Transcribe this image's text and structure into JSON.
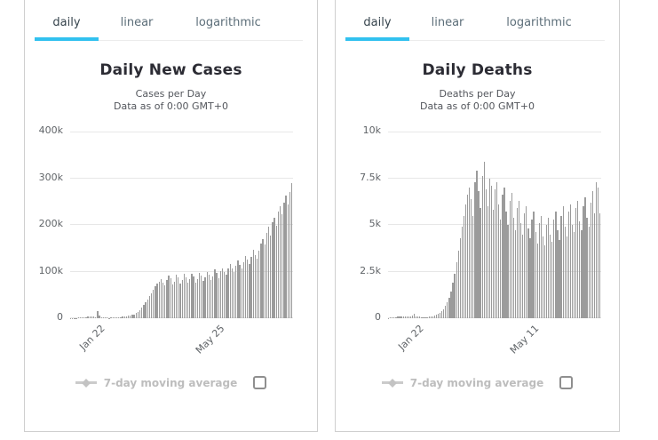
{
  "panels": [
    {
      "tabs": [
        {
          "label": "daily",
          "active": true
        },
        {
          "label": "linear",
          "active": false
        },
        {
          "label": "logarithmic",
          "active": false
        }
      ],
      "title": "Daily New Cases",
      "subtitle_line1": "Cases per Day",
      "subtitle_line2": "Data as of 0:00 GMT+0",
      "legend": {
        "label": "7-day moving average",
        "checkbox_checked": false
      }
    },
    {
      "tabs": [
        {
          "label": "daily",
          "active": true
        },
        {
          "label": "linear",
          "active": false
        },
        {
          "label": "logarithmic",
          "active": false
        }
      ],
      "title": "Daily Deaths",
      "subtitle_line1": "Deaths per Day",
      "subtitle_line2": "Data as of 0:00 GMT+0",
      "legend": {
        "label": "7-day moving average",
        "checkbox_checked": false
      }
    }
  ],
  "colors": {
    "bar": "#9b9b9b",
    "gridline": "#e7e7e7",
    "tab_underline": "#31c1ef",
    "panel_border": "#cfcfcf",
    "axis_text": "#606468",
    "legend_text": "#bdbdbd"
  },
  "chart_data": [
    {
      "type": "bar",
      "title": "Daily New Cases",
      "subtitle": "Cases per Day — Data as of 0:00 GMT+0",
      "unit": "thousands of cases per day",
      "ylim": [
        0,
        400
      ],
      "yticks": [
        "0",
        "100k",
        "200k",
        "300k",
        "400k"
      ],
      "xticks": [
        {
          "label": "Jan 22",
          "pos": 0.12
        },
        {
          "label": "May 25",
          "pos": 0.66
        }
      ],
      "grid": true,
      "legend_position": "bottom",
      "values": [
        0.3,
        0.5,
        0.7,
        0.9,
        1.2,
        1.8,
        2,
        2.3,
        2.7,
        3.1,
        3.5,
        3.8,
        3.2,
        2.8,
        14.6,
        4.9,
        2.3,
        2,
        1.8,
        1.4,
        0.9,
        1.1,
        1.4,
        1.7,
        2,
        2.3,
        2.7,
        3.1,
        3.6,
        4.2,
        4.8,
        5.6,
        6.8,
        8.5,
        11,
        14,
        18,
        23,
        28,
        34,
        40,
        47,
        54,
        61,
        68,
        74,
        79,
        84,
        77,
        71,
        82,
        92,
        86,
        73,
        79,
        93,
        88,
        74,
        81,
        95,
        87,
        76,
        83,
        96,
        89,
        77,
        84,
        98,
        91,
        80,
        87,
        100,
        93,
        82,
        90,
        104,
        97,
        86,
        101,
        107,
        100,
        94,
        106,
        116,
        107,
        99,
        112,
        124,
        114,
        106,
        120,
        134,
        125,
        117,
        131,
        146,
        136,
        128,
        144,
        160,
        170,
        158,
        182,
        196,
        178,
        205,
        216,
        198,
        228,
        240,
        222,
        248,
        262,
        243,
        271,
        289
      ]
    },
    {
      "type": "bar",
      "title": "Daily Deaths",
      "subtitle": "Deaths per Day — Data as of 0:00 GMT+0",
      "unit": "deaths per day",
      "ylim": [
        0,
        10000
      ],
      "yticks": [
        "0",
        "2.5k",
        "5k",
        "7.5k",
        "10k"
      ],
      "xticks": [
        {
          "label": "Jan 22",
          "pos": 0.13
        },
        {
          "label": "May 11",
          "pos": 0.67
        }
      ],
      "grid": true,
      "legend_position": "bottom",
      "values": [
        15,
        25,
        40,
        55,
        65,
        75,
        85,
        95,
        100,
        105,
        110,
        115,
        108,
        120,
        250,
        110,
        95,
        80,
        70,
        60,
        65,
        70,
        78,
        88,
        100,
        130,
        170,
        230,
        300,
        390,
        500,
        650,
        850,
        1100,
        1450,
        1900,
        2400,
        3000,
        3600,
        4300,
        4900,
        5500,
        6100,
        6600,
        7000,
        6400,
        5500,
        7300,
        7900,
        6800,
        5900,
        7600,
        8400,
        6900,
        6000,
        7500,
        7100,
        5800,
        6900,
        7300,
        6100,
        5300,
        6600,
        7000,
        5700,
        5000,
        6300,
        6700,
        5400,
        4700,
        5900,
        6300,
        5100,
        4500,
        5600,
        6000,
        4800,
        4300,
        5300,
        5700,
        4600,
        4000,
        5100,
        5500,
        4400,
        3900,
        5000,
        5400,
        4500,
        4100,
        5300,
        5700,
        4700,
        4200,
        5500,
        6000,
        4900,
        4400,
        5700,
        6100,
        5000,
        4600,
        5900,
        6300,
        5200,
        4700,
        6000,
        6500,
        5400,
        4900,
        6200,
        6800,
        5600,
        7300,
        7000,
        5600
      ]
    }
  ]
}
